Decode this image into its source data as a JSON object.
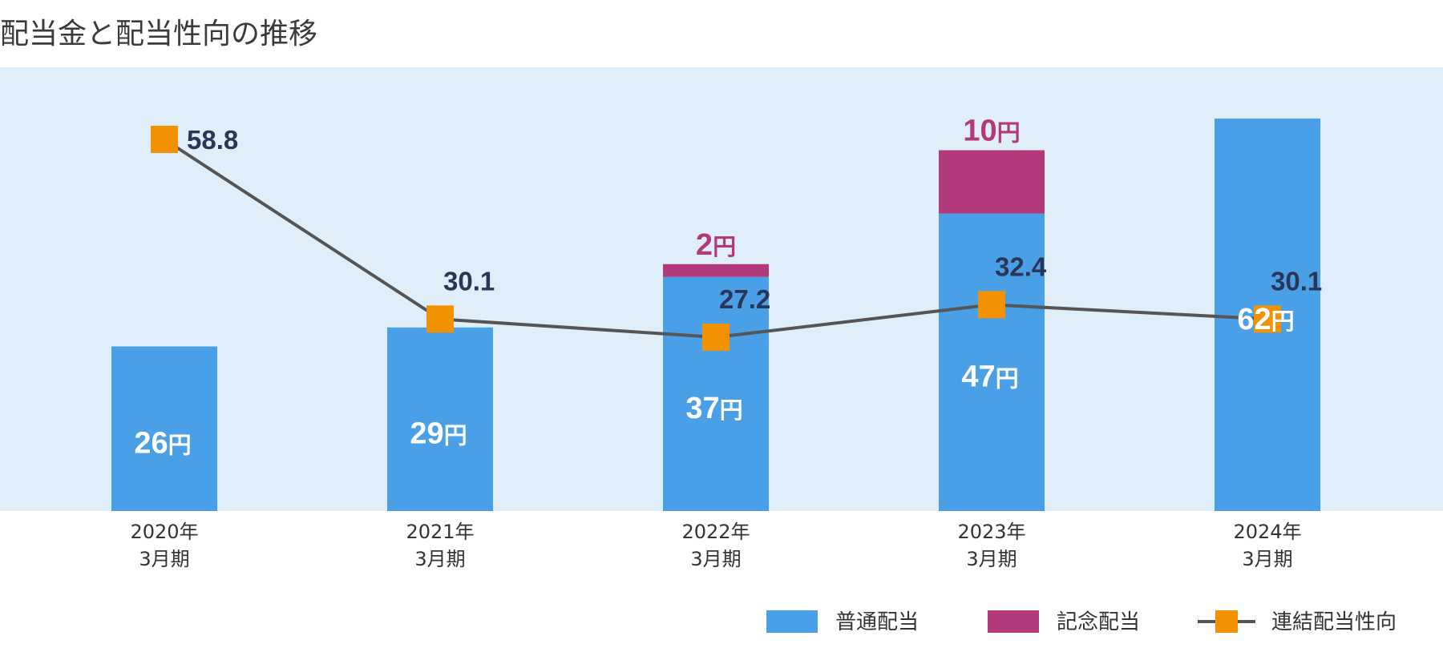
{
  "chart_data": {
    "type": "bar",
    "title": "配当金と配当性向の推移",
    "categories": [
      {
        "line1": "2020年",
        "line2": "3月期"
      },
      {
        "line1": "2021年",
        "line2": "3月期"
      },
      {
        "line1": "2022年",
        "line2": "3月期"
      },
      {
        "line1": "2023年",
        "line2": "3月期"
      },
      {
        "line1": "2024年",
        "line2": "3月期"
      }
    ],
    "unit": "円",
    "series": [
      {
        "name": "普通配当",
        "kind": "bar",
        "stack": "dividend",
        "values": [
          26,
          29,
          37,
          47,
          62
        ],
        "color": "#4aa0e6"
      },
      {
        "name": "記念配当",
        "kind": "bar",
        "stack": "dividend",
        "values": [
          0,
          0,
          2,
          10,
          0
        ],
        "color": "#b33a7a"
      },
      {
        "name": "連結配当性向",
        "kind": "line",
        "values": [
          58.8,
          30.1,
          27.2,
          32.4,
          30.1
        ],
        "color": "#f39200"
      }
    ],
    "bar_ylim": [
      0,
      62
    ],
    "line_ylim": [
      0,
      70
    ],
    "plot_background": "#e0eefa",
    "line_color": "#555555",
    "grid": false,
    "legend_placement": "bottom-right"
  }
}
